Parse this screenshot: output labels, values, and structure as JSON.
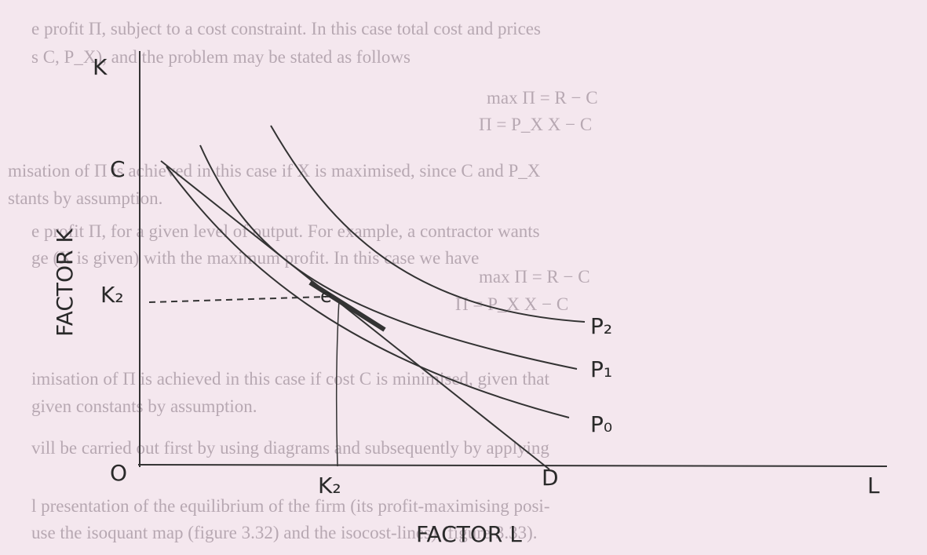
{
  "background_text": {
    "lines": [
      "e profit Π, subject to a cost constraint. In this case total cost and prices",
      "s C, P_X), and the problem may be stated as follows",
      "max Π = R − C",
      "Π = P_X X − C",
      "misation of Π is achieved in this case if X is maximised, since C and P_X",
      "stants by assumption.",
      "e profit Π, for a given level of output. For example, a contractor wants",
      "ge (X is given) with the maximum profit. In this case we have",
      "max Π = R − C",
      "Π = P_X X − C",
      "imisation of Π is achieved in this case if cost C is minimised, given that",
      "given constants by assumption.",
      "vill be carried out first by using diagrams and subsequently by applying",
      "l presentation of the equilibrium of the firm (its profit-maximising posi-",
      "use the isoquant map (figure 3.32) and the isocost-lines) (figure 3.33)."
    ]
  },
  "diagram": {
    "y_axis_letter": "K",
    "y_axis_title": "FACTOR K",
    "x_axis_letter": "L",
    "x_axis_title": "FACTOR L",
    "origin": "O",
    "isocost_top": "C",
    "isocost_bottom": "D",
    "k_level": "K₂",
    "l_level": "K₂",
    "equilibrium": "e",
    "curves": [
      "P₂",
      "P₁",
      "P₀"
    ]
  }
}
